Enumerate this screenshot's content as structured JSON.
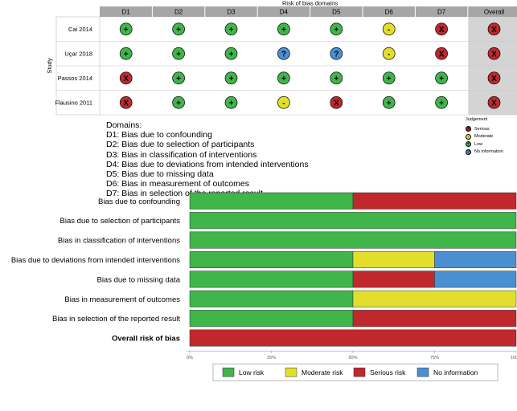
{
  "chart_data": [
    {
      "type": "table",
      "title": "Risk of bias domains",
      "row_axis_label": "Study",
      "columns": [
        "D1",
        "D2",
        "D3",
        "D4",
        "D5",
        "D6",
        "D7",
        "Overall"
      ],
      "rows": [
        {
          "study": "Cai 2014",
          "judgements": [
            "low",
            "low",
            "low",
            "low",
            "low",
            "moderate",
            "serious",
            "serious"
          ]
        },
        {
          "study": "Uçar 2018",
          "judgements": [
            "low",
            "low",
            "low",
            "no_information",
            "no_information",
            "moderate",
            "serious",
            "serious"
          ]
        },
        {
          "study": "Passos 2014",
          "judgements": [
            "serious",
            "low",
            "low",
            "low",
            "low",
            "low",
            "low",
            "serious"
          ]
        },
        {
          "study": "Flausino 2011",
          "judgements": [
            "serious",
            "low",
            "low",
            "moderate",
            "serious",
            "low",
            "low",
            "serious"
          ]
        }
      ],
      "domains_title": "Domains:",
      "domains": [
        "D1: Bias due to confounding",
        "D2: Bias due to selection of participants",
        "D3: Bias in classification of interventions",
        "D4: Bias due to deviations from intended interventions",
        "D5: Bias due to missing data",
        "D6: Bias in measurement of outcomes",
        "D7: Bias in selection of the reported result"
      ],
      "legend_title": "Judgement",
      "legend": [
        {
          "key": "serious",
          "label": "Serious",
          "symbol": "X",
          "color": "#c0282d"
        },
        {
          "key": "moderate",
          "label": "Moderate",
          "symbol": "-",
          "color": "#e2df2c"
        },
        {
          "key": "low",
          "label": "Low",
          "symbol": "+",
          "color": "#3fb54a"
        },
        {
          "key": "no_information",
          "label": "No information",
          "symbol": "?",
          "color": "#4a90d0"
        }
      ],
      "colors": {
        "header_bg": "#a6a6a6",
        "overall_bg": "#d4d4d4"
      }
    },
    {
      "type": "bar",
      "stacked": "horizontal",
      "categories": [
        "Bias due to confounding",
        "Bias due to selection of participants",
        "Bias in classification of interventions",
        "Bias due to deviations from intended interventions",
        "Bias due to missing data",
        "Bias in measurement of outcomes",
        "Bias in selection of the reported result",
        "Overall risk of bias"
      ],
      "series": [
        {
          "name": "Low risk",
          "color": "#3fb54a",
          "values": [
            50,
            100,
            100,
            50,
            50,
            50,
            50,
            0
          ]
        },
        {
          "name": "Moderate risk",
          "color": "#e2df2c",
          "values": [
            0,
            0,
            0,
            25,
            0,
            50,
            0,
            0
          ]
        },
        {
          "name": "Serious risk",
          "color": "#c0282d",
          "values": [
            50,
            0,
            0,
            0,
            25,
            0,
            50,
            100
          ]
        },
        {
          "name": "No information",
          "color": "#4a90d0",
          "values": [
            0,
            0,
            0,
            25,
            25,
            0,
            0,
            0
          ]
        }
      ],
      "xlim": [
        0,
        100
      ],
      "xticks": [
        "0%",
        "25%",
        "50%",
        "75%",
        "100%"
      ],
      "bold_category": "Overall risk of bias"
    }
  ]
}
